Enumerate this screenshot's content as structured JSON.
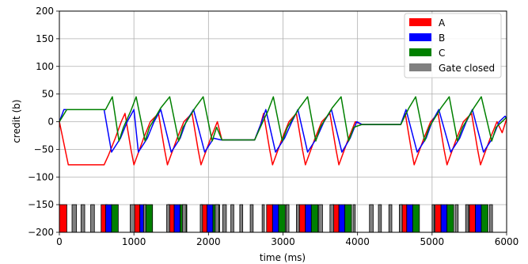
{
  "chart_data": {
    "type": "line",
    "title": "",
    "xlabel": "time (ms)",
    "ylabel": "credit (b)",
    "xlim": [
      0,
      6000
    ],
    "ylim": [
      -200,
      200
    ],
    "x_ticks": [
      0,
      1000,
      2000,
      3000,
      4000,
      5000,
      6000
    ],
    "y_ticks": [
      -200,
      -150,
      -100,
      -50,
      0,
      50,
      100,
      150,
      200
    ],
    "x_tick_labels": [
      "0",
      "1000",
      "2000",
      "3000",
      "4000",
      "5000",
      "6000"
    ],
    "y_tick_labels": [
      "−200",
      "−150",
      "−100",
      "−50",
      "0",
      "50",
      "100",
      "150",
      "200"
    ],
    "grid": true,
    "legend_position": "top-right",
    "legend": [
      {
        "label": "A",
        "color": "#ff0000"
      },
      {
        "label": "B",
        "color": "#0000ff"
      },
      {
        "label": "C",
        "color": "#008000"
      },
      {
        "label": "Gate closed",
        "color": "#808080"
      }
    ],
    "series": [
      {
        "name": "A",
        "color": "#ff0000",
        "points": [
          [
            0,
            0
          ],
          [
            120,
            -78
          ],
          [
            600,
            -78
          ],
          [
            660,
            -60
          ],
          [
            750,
            -30
          ],
          [
            830,
            0
          ],
          [
            880,
            15
          ],
          [
            960,
            -50
          ],
          [
            1000,
            -78
          ],
          [
            1130,
            -30
          ],
          [
            1220,
            0
          ],
          [
            1330,
            15
          ],
          [
            1410,
            -50
          ],
          [
            1450,
            -78
          ],
          [
            1580,
            -30
          ],
          [
            1670,
            0
          ],
          [
            1780,
            15
          ],
          [
            1860,
            -50
          ],
          [
            1900,
            -78
          ],
          [
            2030,
            -30
          ],
          [
            2120,
            0
          ],
          [
            2180,
            -33
          ],
          [
            2620,
            -33
          ],
          [
            2700,
            -5
          ],
          [
            2740,
            15
          ],
          [
            2820,
            -50
          ],
          [
            2860,
            -78
          ],
          [
            2990,
            -30
          ],
          [
            3080,
            0
          ],
          [
            3180,
            15
          ],
          [
            3260,
            -50
          ],
          [
            3300,
            -78
          ],
          [
            3430,
            -30
          ],
          [
            3520,
            0
          ],
          [
            3630,
            15
          ],
          [
            3710,
            -50
          ],
          [
            3750,
            -78
          ],
          [
            3880,
            -30
          ],
          [
            3970,
            0
          ],
          [
            4060,
            -5
          ],
          [
            4580,
            -5
          ],
          [
            4640,
            15
          ],
          [
            4720,
            -50
          ],
          [
            4760,
            -78
          ],
          [
            4890,
            -30
          ],
          [
            4980,
            0
          ],
          [
            5080,
            15
          ],
          [
            5160,
            -50
          ],
          [
            5200,
            -78
          ],
          [
            5330,
            -30
          ],
          [
            5420,
            0
          ],
          [
            5530,
            15
          ],
          [
            5610,
            -50
          ],
          [
            5650,
            -78
          ],
          [
            5780,
            -30
          ],
          [
            5870,
            0
          ],
          [
            5940,
            -20
          ],
          [
            6000,
            5
          ]
        ]
      },
      {
        "name": "B",
        "color": "#0000ff",
        "points": [
          [
            0,
            0
          ],
          [
            60,
            22
          ],
          [
            600,
            22
          ],
          [
            700,
            -55
          ],
          [
            820,
            -30
          ],
          [
            910,
            0
          ],
          [
            1000,
            22
          ],
          [
            1060,
            -55
          ],
          [
            1180,
            -30
          ],
          [
            1270,
            0
          ],
          [
            1360,
            22
          ],
          [
            1500,
            -55
          ],
          [
            1620,
            -30
          ],
          [
            1700,
            0
          ],
          [
            1800,
            22
          ],
          [
            1950,
            -55
          ],
          [
            2070,
            -30
          ],
          [
            2170,
            -33
          ],
          [
            2620,
            -33
          ],
          [
            2700,
            -5
          ],
          [
            2770,
            22
          ],
          [
            2900,
            -55
          ],
          [
            3020,
            -30
          ],
          [
            3120,
            0
          ],
          [
            3200,
            22
          ],
          [
            3330,
            -55
          ],
          [
            3450,
            -30
          ],
          [
            3550,
            0
          ],
          [
            3650,
            22
          ],
          [
            3790,
            -55
          ],
          [
            3900,
            -30
          ],
          [
            3990,
            0
          ],
          [
            4060,
            -5
          ],
          [
            4580,
            -5
          ],
          [
            4650,
            22
          ],
          [
            4800,
            -55
          ],
          [
            4920,
            -30
          ],
          [
            5000,
            0
          ],
          [
            5090,
            22
          ],
          [
            5250,
            -55
          ],
          [
            5370,
            -30
          ],
          [
            5460,
            0
          ],
          [
            5540,
            22
          ],
          [
            5690,
            -55
          ],
          [
            5810,
            -30
          ],
          [
            5900,
            0
          ],
          [
            5980,
            10
          ],
          [
            6000,
            5
          ]
        ]
      },
      {
        "name": "C",
        "color": "#008000",
        "points": [
          [
            0,
            0
          ],
          [
            100,
            22
          ],
          [
            620,
            22
          ],
          [
            710,
            45
          ],
          [
            800,
            -35
          ],
          [
            860,
            -10
          ],
          [
            960,
            20
          ],
          [
            1030,
            45
          ],
          [
            1150,
            -35
          ],
          [
            1210,
            -10
          ],
          [
            1360,
            25
          ],
          [
            1480,
            45
          ],
          [
            1600,
            -35
          ],
          [
            1660,
            -10
          ],
          [
            1820,
            25
          ],
          [
            1930,
            45
          ],
          [
            2050,
            -35
          ],
          [
            2110,
            -10
          ],
          [
            2180,
            -33
          ],
          [
            2620,
            -33
          ],
          [
            2730,
            0
          ],
          [
            2800,
            20
          ],
          [
            2870,
            45
          ],
          [
            2990,
            -35
          ],
          [
            3060,
            -10
          ],
          [
            3220,
            25
          ],
          [
            3330,
            45
          ],
          [
            3440,
            -35
          ],
          [
            3500,
            -10
          ],
          [
            3660,
            25
          ],
          [
            3780,
            45
          ],
          [
            3880,
            -35
          ],
          [
            3950,
            -10
          ],
          [
            4060,
            -5
          ],
          [
            4580,
            -5
          ],
          [
            4690,
            25
          ],
          [
            4780,
            45
          ],
          [
            4900,
            -35
          ],
          [
            4960,
            -10
          ],
          [
            5120,
            25
          ],
          [
            5230,
            45
          ],
          [
            5340,
            -35
          ],
          [
            5410,
            -10
          ],
          [
            5560,
            25
          ],
          [
            5660,
            45
          ],
          [
            5800,
            -35
          ],
          [
            5860,
            -10
          ],
          [
            6000,
            8
          ]
        ]
      }
    ],
    "transmission_bars": [
      {
        "series": "A",
        "intervals": [
          [
            0,
            100
          ],
          [
            560,
            640
          ],
          [
            1000,
            1080
          ],
          [
            1460,
            1540
          ],
          [
            1900,
            1980
          ],
          [
            2780,
            2860
          ],
          [
            3220,
            3300
          ],
          [
            3670,
            3750
          ],
          [
            4580,
            4660
          ],
          [
            5040,
            5120
          ],
          [
            5500,
            5580
          ]
        ]
      },
      {
        "series": "B",
        "intervals": [
          [
            620,
            700
          ],
          [
            1080,
            1160
          ],
          [
            1540,
            1620
          ],
          [
            1980,
            2060
          ],
          [
            2860,
            2940
          ],
          [
            3300,
            3380
          ],
          [
            3750,
            3830
          ],
          [
            4660,
            4740
          ],
          [
            5120,
            5200
          ],
          [
            5580,
            5660
          ]
        ]
      },
      {
        "series": "C",
        "intervals": [
          [
            700,
            790
          ],
          [
            1160,
            1250
          ],
          [
            1620,
            1710
          ],
          [
            2060,
            2150
          ],
          [
            2940,
            3030
          ],
          [
            3380,
            3470
          ],
          [
            3830,
            3920
          ],
          [
            4740,
            4830
          ],
          [
            5200,
            5290
          ],
          [
            5660,
            5750
          ]
        ]
      },
      {
        "series": "Gate closed",
        "intervals": [
          [
            170,
            230
          ],
          [
            290,
            340
          ],
          [
            420,
            470
          ],
          [
            950,
            1010
          ],
          [
            1130,
            1160
          ],
          [
            1440,
            1480
          ],
          [
            1650,
            1700
          ],
          [
            1890,
            1920
          ],
          [
            2090,
            2140
          ],
          [
            2190,
            2240
          ],
          [
            2300,
            2340
          ],
          [
            2420,
            2460
          ],
          [
            2560,
            2600
          ],
          [
            2720,
            2750
          ],
          [
            3040,
            3080
          ],
          [
            3180,
            3220
          ],
          [
            3480,
            3530
          ],
          [
            3630,
            3680
          ],
          [
            3940,
            3970
          ],
          [
            4160,
            4210
          ],
          [
            4280,
            4320
          ],
          [
            4420,
            4460
          ],
          [
            4560,
            4600
          ],
          [
            5000,
            5030
          ],
          [
            5310,
            5350
          ],
          [
            5450,
            5490
          ],
          [
            5770,
            5810
          ]
        ]
      }
    ]
  }
}
